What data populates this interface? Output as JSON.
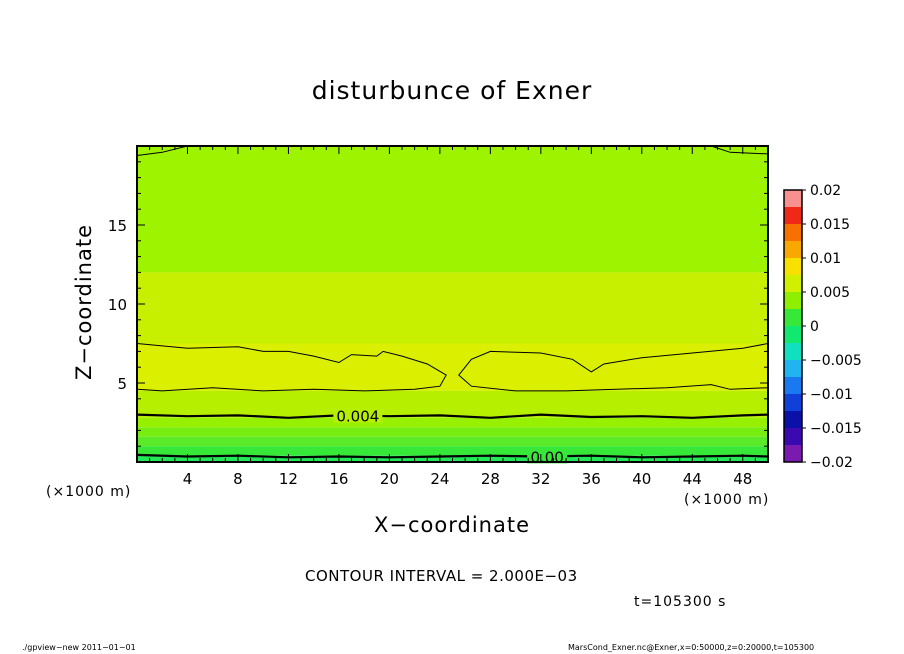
{
  "title": "disturbunce of Exner",
  "xlabel": "X−coordinate",
  "ylabel": "Z−coordinate",
  "x_unit_left": "(×1000 m)",
  "x_unit_right": "(×1000 m)",
  "contour_interval_text": "CONTOUR INTERVAL = 2.000E−03",
  "time_text": "t=105300 s",
  "footer_left": "./gpview−new   2011−01−01",
  "footer_right": "MarsCond_Exner.nc@Exner,x=0:50000,z=0:20000,t=105300",
  "chart_data": {
    "type": "heatmap",
    "xlim": [
      0,
      50
    ],
    "ylim": [
      0,
      20
    ],
    "x_ticks": [
      4,
      8,
      12,
      16,
      20,
      24,
      28,
      32,
      36,
      40,
      44,
      48
    ],
    "y_ticks": [
      5,
      10,
      15
    ],
    "grid": false,
    "colorbar": {
      "labels": [
        "0.02",
        "0.015",
        "0.01",
        "0.005",
        "0",
        "−0.005",
        "−0.01",
        "−0.015",
        "−0.02"
      ],
      "levels": [
        {
          "lo": -0.02,
          "hi": -0.0175,
          "color": "#7a1ab0"
        },
        {
          "lo": -0.0175,
          "hi": -0.015,
          "color": "#3a0ab0"
        },
        {
          "lo": -0.015,
          "hi": -0.0125,
          "color": "#0a10a8"
        },
        {
          "lo": -0.0125,
          "hi": -0.01,
          "color": "#1040d8"
        },
        {
          "lo": -0.01,
          "hi": -0.0075,
          "color": "#1a78f0"
        },
        {
          "lo": -0.0075,
          "hi": -0.005,
          "color": "#20b4f0"
        },
        {
          "lo": -0.005,
          "hi": -0.0025,
          "color": "#10e0c0"
        },
        {
          "lo": -0.0025,
          "hi": 0.0,
          "color": "#10e870"
        },
        {
          "lo": 0.0,
          "hi": 0.0025,
          "color": "#38e838"
        },
        {
          "lo": 0.0025,
          "hi": 0.005,
          "color": "#8ef000"
        },
        {
          "lo": 0.005,
          "hi": 0.0075,
          "color": "#d0f000"
        },
        {
          "lo": 0.0075,
          "hi": 0.01,
          "color": "#f8e000"
        },
        {
          "lo": 0.01,
          "hi": 0.0125,
          "color": "#f8a800"
        },
        {
          "lo": 0.0125,
          "hi": 0.015,
          "color": "#f87000"
        },
        {
          "lo": 0.015,
          "hi": 0.0175,
          "color": "#f02818"
        },
        {
          "lo": 0.0175,
          "hi": 0.02,
          "color": "#f89090"
        }
      ]
    },
    "fill_bands": [
      {
        "name": "upper",
        "z_range": [
          12,
          20
        ],
        "color": "#9ef400"
      },
      {
        "name": "mid",
        "z_range": [
          7.5,
          12
        ],
        "color": "#c6f000"
      },
      {
        "name": "core",
        "z_range": [
          4.5,
          7.5
        ],
        "color": "#daf000"
      },
      {
        "name": "lower",
        "z_range": [
          2.8,
          4.5
        ],
        "color": "#b6f000"
      },
      {
        "name": "l1",
        "z_range": [
          2.2,
          2.8
        ],
        "color": "#96f000"
      },
      {
        "name": "l2",
        "z_range": [
          1.6,
          2.2
        ],
        "color": "#78ee10"
      },
      {
        "name": "l3",
        "z_range": [
          1.0,
          1.6
        ],
        "color": "#5aea28"
      },
      {
        "name": "l4",
        "z_range": [
          0.4,
          1.0
        ],
        "color": "#38e838"
      },
      {
        "name": "l5",
        "z_range": [
          0,
          0.4
        ],
        "color": "#22e858"
      }
    ],
    "contours": [
      {
        "label": "0.004",
        "label_x": 17.5,
        "points": [
          [
            0,
            3.0
          ],
          [
            4,
            2.9
          ],
          [
            8,
            2.95
          ],
          [
            12,
            2.8
          ],
          [
            16,
            2.95
          ],
          [
            20,
            2.9
          ],
          [
            24,
            2.95
          ],
          [
            28,
            2.8
          ],
          [
            32,
            3.0
          ],
          [
            36,
            2.85
          ],
          [
            40,
            2.9
          ],
          [
            44,
            2.8
          ],
          [
            48,
            2.95
          ],
          [
            50,
            3.0
          ]
        ]
      },
      {
        "label": "0.00",
        "label_x": 32.5,
        "points": [
          [
            0,
            0.45
          ],
          [
            4,
            0.35
          ],
          [
            8,
            0.4
          ],
          [
            12,
            0.3
          ],
          [
            16,
            0.35
          ],
          [
            20,
            0.3
          ],
          [
            24,
            0.35
          ],
          [
            28,
            0.4
          ],
          [
            32,
            0.35
          ],
          [
            36,
            0.4
          ],
          [
            40,
            0.3
          ],
          [
            44,
            0.35
          ],
          [
            48,
            0.4
          ],
          [
            50,
            0.35
          ]
        ]
      },
      {
        "label": "",
        "points": [
          [
            0,
            7.5
          ],
          [
            4,
            7.2
          ],
          [
            8,
            7.3
          ],
          [
            10,
            7.0
          ],
          [
            12,
            7.0
          ],
          [
            14,
            6.7
          ],
          [
            16,
            6.3
          ],
          [
            17,
            6.8
          ],
          [
            19,
            6.7
          ],
          [
            19.5,
            7.0
          ],
          [
            21,
            6.7
          ],
          [
            23,
            6.2
          ],
          [
            24.5,
            5.5
          ],
          [
            24,
            4.8
          ],
          [
            22,
            4.6
          ],
          [
            18,
            4.5
          ],
          [
            14,
            4.6
          ],
          [
            10,
            4.5
          ],
          [
            6,
            4.7
          ],
          [
            2,
            4.5
          ],
          [
            0,
            4.6
          ]
        ]
      },
      {
        "label": "",
        "points": [
          [
            50,
            7.5
          ],
          [
            48,
            7.2
          ],
          [
            44,
            6.9
          ],
          [
            40,
            6.6
          ],
          [
            37,
            6.2
          ],
          [
            36,
            5.7
          ],
          [
            34.5,
            6.5
          ],
          [
            32,
            6.9
          ],
          [
            28,
            7.0
          ],
          [
            26.5,
            6.5
          ],
          [
            25.5,
            5.5
          ],
          [
            26.5,
            4.8
          ],
          [
            30,
            4.5
          ],
          [
            34,
            4.5
          ],
          [
            38,
            4.6
          ],
          [
            42,
            4.7
          ],
          [
            45.5,
            4.9
          ],
          [
            47,
            4.6
          ],
          [
            50,
            4.7
          ]
        ]
      },
      {
        "label": "",
        "points": [
          [
            0,
            19.4
          ],
          [
            2,
            19.6
          ],
          [
            4,
            20.0
          ]
        ]
      },
      {
        "label": "",
        "points": [
          [
            45.5,
            20.0
          ],
          [
            47,
            19.6
          ],
          [
            50,
            19.5
          ]
        ]
      }
    ]
  }
}
